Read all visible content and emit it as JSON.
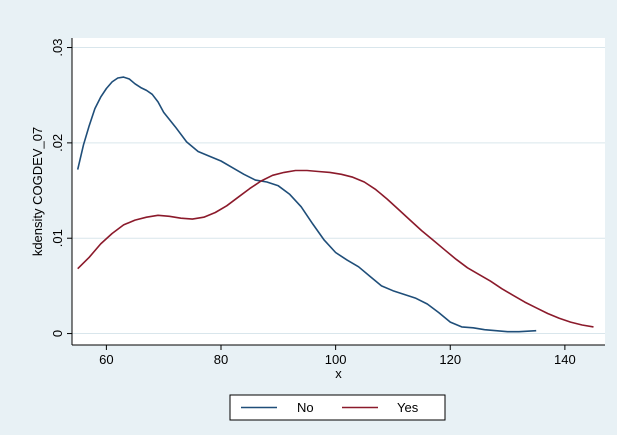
{
  "chart_data": {
    "type": "line",
    "xlabel": "x",
    "ylabel": "kdensity COGDEV_07",
    "xlim": [
      54,
      147
    ],
    "ylim": [
      -0.0012,
      0.031
    ],
    "x_ticks": [
      60,
      80,
      100,
      120,
      140
    ],
    "x_tick_labels": [
      "60",
      "80",
      "100",
      "120",
      "140"
    ],
    "y_ticks": [
      0,
      0.01,
      0.02,
      0.03
    ],
    "y_tick_labels": [
      "0",
      ".01",
      ".02",
      ".03"
    ],
    "grid": true,
    "legend_position": "bottom",
    "colors": {
      "outer_background": "#e8f1f5",
      "plot_background": "#ffffff",
      "grid": "#d9e6ec",
      "no": "#1f4e79",
      "yes": "#8b1a2b"
    },
    "series": [
      {
        "name": "No",
        "points": [
          [
            55,
            0.0172
          ],
          [
            56,
            0.0198
          ],
          [
            57,
            0.0218
          ],
          [
            58,
            0.0236
          ],
          [
            59,
            0.0248
          ],
          [
            60,
            0.0257
          ],
          [
            61,
            0.0264
          ],
          [
            62,
            0.0268
          ],
          [
            63,
            0.0269
          ],
          [
            64,
            0.0267
          ],
          [
            65,
            0.0262
          ],
          [
            66,
            0.0258
          ],
          [
            67,
            0.0255
          ],
          [
            68,
            0.0251
          ],
          [
            69,
            0.0243
          ],
          [
            70,
            0.0232
          ],
          [
            72,
            0.0217
          ],
          [
            74,
            0.0201
          ],
          [
            76,
            0.0191
          ],
          [
            78,
            0.0186
          ],
          [
            80,
            0.0181
          ],
          [
            82,
            0.0174
          ],
          [
            84,
            0.0167
          ],
          [
            86,
            0.0161
          ],
          [
            88,
            0.0159
          ],
          [
            90,
            0.0155
          ],
          [
            92,
            0.0146
          ],
          [
            94,
            0.0133
          ],
          [
            96,
            0.0115
          ],
          [
            98,
            0.0098
          ],
          [
            100,
            0.0085
          ],
          [
            102,
            0.0077
          ],
          [
            104,
            0.007
          ],
          [
            106,
            0.006
          ],
          [
            108,
            0.005
          ],
          [
            110,
            0.0045
          ],
          [
            112,
            0.0041
          ],
          [
            114,
            0.0037
          ],
          [
            116,
            0.0031
          ],
          [
            118,
            0.0022
          ],
          [
            120,
            0.0012
          ],
          [
            122,
            0.0007
          ],
          [
            124,
            0.0006
          ],
          [
            126,
            0.0004
          ],
          [
            128,
            0.0003
          ],
          [
            130,
            0.0002
          ],
          [
            132,
            0.0002
          ],
          [
            135,
            0.0003
          ]
        ]
      },
      {
        "name": "Yes",
        "points": [
          [
            55,
            0.0068
          ],
          [
            57,
            0.008
          ],
          [
            59,
            0.0094
          ],
          [
            61,
            0.0105
          ],
          [
            63,
            0.0114
          ],
          [
            65,
            0.0119
          ],
          [
            67,
            0.0122
          ],
          [
            69,
            0.0124
          ],
          [
            71,
            0.0123
          ],
          [
            73,
            0.0121
          ],
          [
            75,
            0.012
          ],
          [
            77,
            0.0122
          ],
          [
            79,
            0.0127
          ],
          [
            81,
            0.0134
          ],
          [
            83,
            0.0143
          ],
          [
            85,
            0.0152
          ],
          [
            87,
            0.016
          ],
          [
            89,
            0.0166
          ],
          [
            91,
            0.0169
          ],
          [
            93,
            0.0171
          ],
          [
            95,
            0.0171
          ],
          [
            97,
            0.017
          ],
          [
            99,
            0.0169
          ],
          [
            101,
            0.0167
          ],
          [
            103,
            0.0164
          ],
          [
            105,
            0.0159
          ],
          [
            107,
            0.0151
          ],
          [
            109,
            0.0141
          ],
          [
            111,
            0.013
          ],
          [
            113,
            0.0119
          ],
          [
            115,
            0.0108
          ],
          [
            117,
            0.0098
          ],
          [
            119,
            0.0088
          ],
          [
            121,
            0.0078
          ],
          [
            123,
            0.0069
          ],
          [
            125,
            0.0062
          ],
          [
            127,
            0.0055
          ],
          [
            129,
            0.0047
          ],
          [
            131,
            0.004
          ],
          [
            133,
            0.0033
          ],
          [
            135,
            0.0027
          ],
          [
            137,
            0.0021
          ],
          [
            139,
            0.0016
          ],
          [
            141,
            0.0012
          ],
          [
            143,
            0.0009
          ],
          [
            145,
            0.0007
          ]
        ]
      }
    ]
  }
}
